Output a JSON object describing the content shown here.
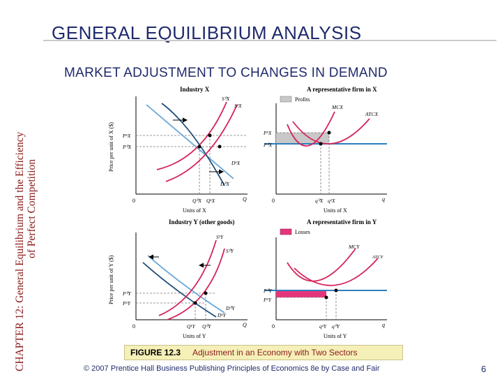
{
  "side_title": {
    "line1": "CHAPTER 12:  General Equilibrium and the Efficiency",
    "line2": "of Perfect Competition"
  },
  "main_title": "GENERAL EQUILIBRIUM ANALYSIS",
  "subtitle": "MARKET ADJUSTMENT TO CHANGES IN DEMAND",
  "figure": {
    "panel_industry_x": {
      "title": "Industry X",
      "y_axis_label": "Price per unit of X ($)",
      "x_axis_label": "Units of X",
      "origin": "0",
      "q_label": "Q",
      "labels": {
        "s0": "S⁰X",
        "s1": "S¹X",
        "d0": "D⁰X",
        "d1": "D¹X",
        "p1": "P¹X",
        "p0": "P⁰X",
        "q0": "Q⁰X",
        "q1": "Q¹X"
      }
    },
    "panel_firm_x": {
      "title": "A representative firm in X",
      "legend": "Profits",
      "x_axis_label": "Units of X",
      "origin": "0",
      "q_label": "q",
      "labels": {
        "mc": "MCX",
        "atc": "ATCX",
        "p1": "P¹X",
        "p0": "P⁰X",
        "q0": "q⁰X",
        "q1": "q¹X"
      }
    },
    "panel_industry_y": {
      "title": "Industry Y (other goods)",
      "y_axis_label": "Price per unit of Y ($)",
      "x_axis_label": "Units of Y",
      "origin": "0",
      "q_label": "Q",
      "labels": {
        "s1": "S¹Y",
        "s0": "S⁰Y",
        "d1": "D¹Y",
        "d0": "D⁰Y",
        "p0": "P⁰Y",
        "p1": "P¹Y",
        "q1": "Q¹Y",
        "q0": "Q⁰Y"
      }
    },
    "panel_firm_y": {
      "title": "A representative firm in Y",
      "legend": "Losses",
      "x_axis_label": "Units of Y",
      "origin": "0",
      "q_label": "q",
      "labels": {
        "mc": "MCY",
        "atc": "ATCY",
        "p0": "P⁰Y",
        "p1": "P¹Y",
        "q1": "q¹Y",
        "q0": "q⁰Y"
      }
    },
    "colors": {
      "supply": "#d6245a",
      "demand_new": "#1f4e79",
      "demand_old": "#6aa6d6",
      "price_line": "#2a7fbf",
      "mc_curve": "#d6245a",
      "profits_fill": "#c8c8c8",
      "losses_fill": "#e5357a"
    }
  },
  "caption": {
    "label": "FIGURE 12.3",
    "text": "Adjustment in an Economy with Two Sectors"
  },
  "copyright": "© 2007 Prentice Hall Business Publishing   Principles of Economics 8e by Case and Fair",
  "page_number": "6"
}
